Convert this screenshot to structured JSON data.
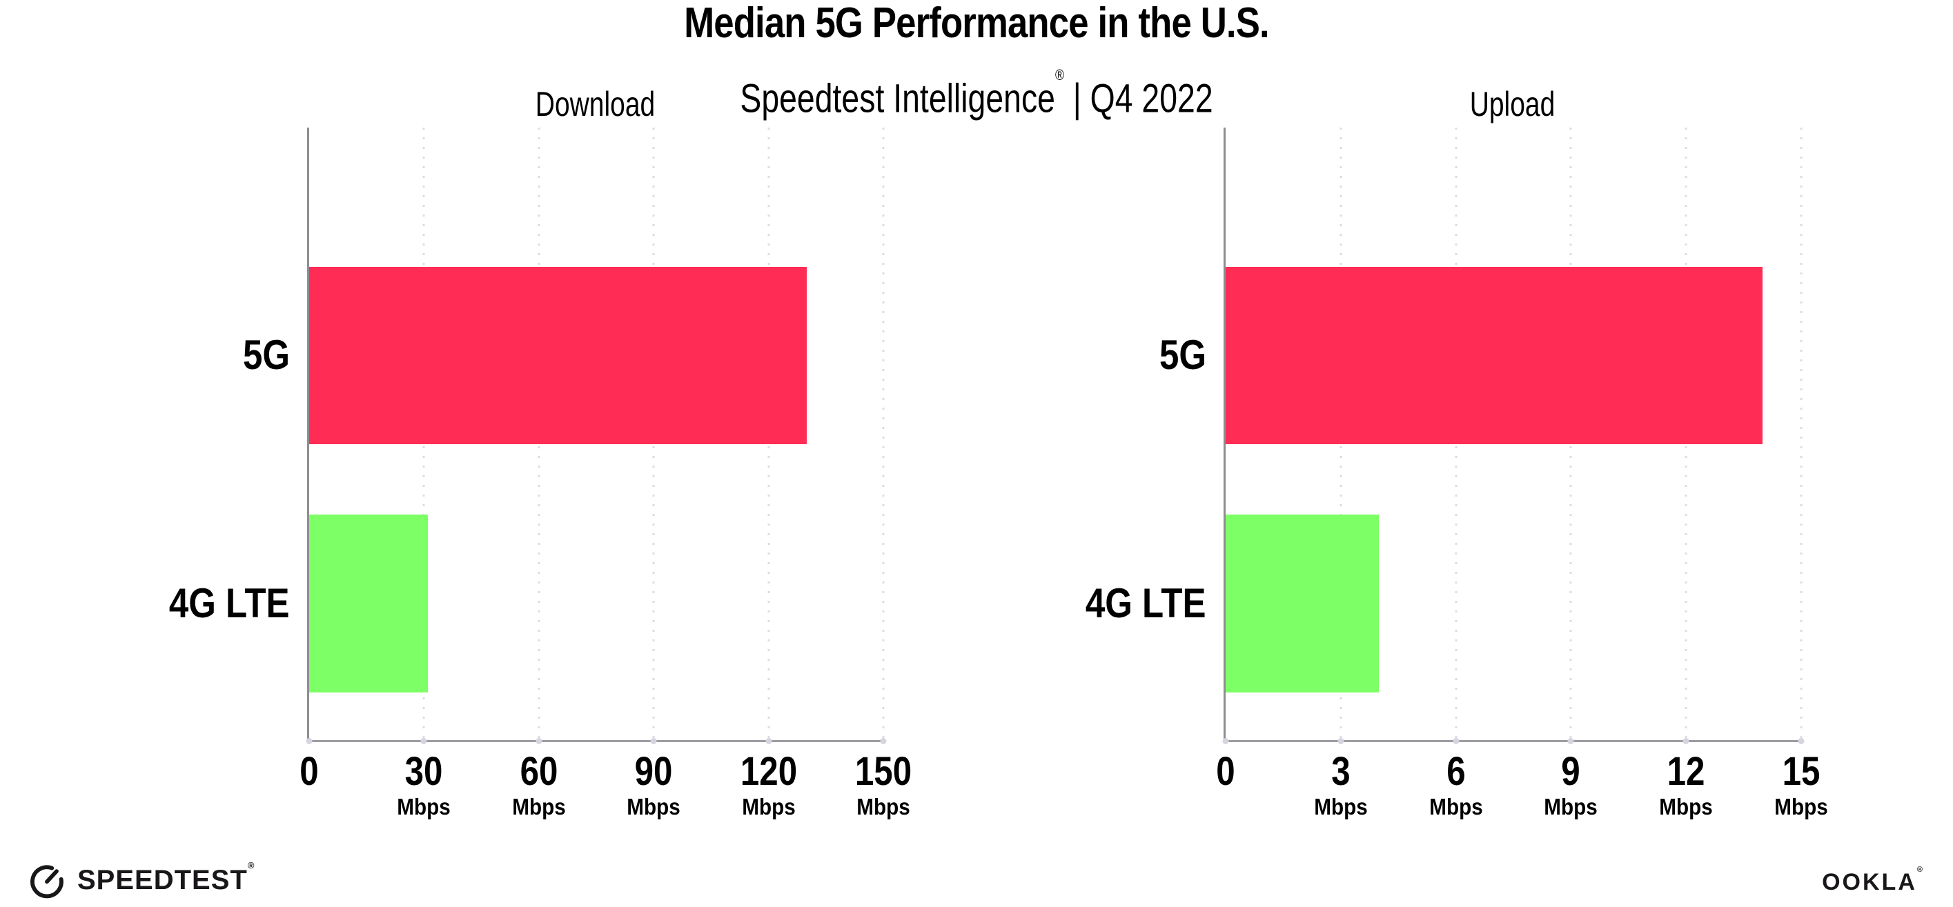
{
  "header": {
    "title": "Median 5G Performance in the U.S.",
    "subtitle_product": "Speedtest Intelligence",
    "subtitle_reg": "®",
    "subtitle_sep": "|",
    "subtitle_period": "Q4 2022"
  },
  "colors": {
    "bar_5g": "#FF2D55",
    "bar_4g_lte": "#7DFF66",
    "gridline": "#DCDCE6",
    "axis": "#8D8D92",
    "text": "#000000",
    "logo": "#19171A"
  },
  "chart_data": [
    {
      "type": "bar",
      "orientation": "horizontal",
      "title": "Download",
      "unit": "Mbps",
      "categories": [
        "5G",
        "4G LTE"
      ],
      "values": [
        130,
        31
      ],
      "bar_colors": [
        "#FF2D55",
        "#7DFF66"
      ],
      "xlim": [
        0,
        150
      ],
      "grid": "vertical-dotted",
      "legend": "none",
      "xticks": [
        {
          "value": 0,
          "label": "0",
          "unit": ""
        },
        {
          "value": 30,
          "label": "30",
          "unit": "Mbps"
        },
        {
          "value": 60,
          "label": "60",
          "unit": "Mbps"
        },
        {
          "value": 90,
          "label": "90",
          "unit": "Mbps"
        },
        {
          "value": 120,
          "label": "120",
          "unit": "Mbps"
        },
        {
          "value": 150,
          "label": "150",
          "unit": "Mbps"
        }
      ]
    },
    {
      "type": "bar",
      "orientation": "horizontal",
      "title": "Upload",
      "unit": "Mbps",
      "categories": [
        "5G",
        "4G LTE"
      ],
      "values": [
        14,
        4
      ],
      "bar_colors": [
        "#FF2D55",
        "#7DFF66"
      ],
      "xlim": [
        0,
        15
      ],
      "grid": "vertical-dotted",
      "legend": "none",
      "xticks": [
        {
          "value": 0,
          "label": "0",
          "unit": ""
        },
        {
          "value": 3,
          "label": "3",
          "unit": "Mbps"
        },
        {
          "value": 6,
          "label": "6",
          "unit": "Mbps"
        },
        {
          "value": 9,
          "label": "9",
          "unit": "Mbps"
        },
        {
          "value": 12,
          "label": "12",
          "unit": "Mbps"
        },
        {
          "value": 15,
          "label": "15",
          "unit": "Mbps"
        }
      ]
    }
  ],
  "footer": {
    "speedtest_label": "SPEEDTEST",
    "speedtest_mark": "®",
    "speedtest_icon": "speedtest-gauge-icon",
    "ookla_label": "OOKLA",
    "ookla_mark": "®"
  }
}
